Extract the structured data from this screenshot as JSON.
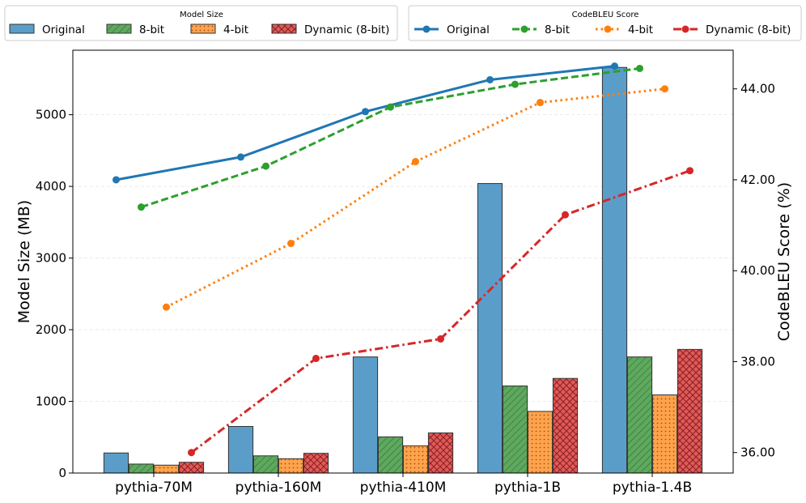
{
  "chart_data": {
    "type": "bar",
    "categories": [
      "pythia-70M",
      "pythia-160M",
      "pythia-410M",
      "pythia-1B",
      "pythia-1.4B"
    ],
    "size_series": [
      {
        "name": "Original",
        "values": [
          280,
          650,
          1620,
          4040,
          5660
        ],
        "color": "#1f77b4"
      },
      {
        "name": "8-bit",
        "values": [
          125,
          240,
          505,
          1215,
          1620
        ],
        "color": "#2ca02c"
      },
      {
        "name": "4-bit",
        "values": [
          110,
          200,
          380,
          860,
          1090
        ],
        "color": "#ff7f0e"
      },
      {
        "name": "Dynamic (8-bit)",
        "values": [
          150,
          275,
          560,
          1320,
          1725
        ],
        "color": "#d62728"
      }
    ],
    "score_series": [
      {
        "name": "Original",
        "values": [
          42.0,
          42.5,
          43.5,
          44.2,
          44.5
        ],
        "color": "#1f77b4"
      },
      {
        "name": "8-bit",
        "values": [
          41.4,
          42.3,
          43.6,
          44.1,
          44.45
        ],
        "color": "#2ca02c"
      },
      {
        "name": "4-bit",
        "values": [
          39.2,
          40.6,
          42.4,
          43.7,
          44.0
        ],
        "color": "#ff7f0e"
      },
      {
        "name": "Dynamic (8-bit)",
        "values": [
          36.0,
          38.07,
          38.5,
          41.23,
          42.2
        ],
        "color": "#d62728"
      }
    ],
    "y_left": {
      "label": "Model Size (MB)",
      "ylim": [
        0,
        5900
      ],
      "ticks": [
        0,
        1000,
        2000,
        3000,
        4000,
        5000
      ],
      "tick_labels": [
        "0",
        "1000",
        "2000",
        "3000",
        "4000",
        "5000"
      ]
    },
    "y_right": {
      "label": "CodeBLEU Score (%)",
      "ylim": [
        35.55,
        44.85
      ],
      "ticks": [
        36,
        38,
        40,
        42,
        44
      ],
      "tick_labels": [
        "36.00",
        "38.00",
        "40.00",
        "42.00",
        "44.00"
      ]
    },
    "legend_size": {
      "title": "Model Size",
      "labels": [
        "Original",
        "8-bit",
        "4-bit",
        "Dynamic (8-bit)"
      ]
    },
    "legend_score": {
      "title": "CodeBLEU Score",
      "labels": [
        "Original",
        "8-bit",
        "4-bit",
        "Dynamic (8-bit)"
      ]
    },
    "grid": true
  }
}
